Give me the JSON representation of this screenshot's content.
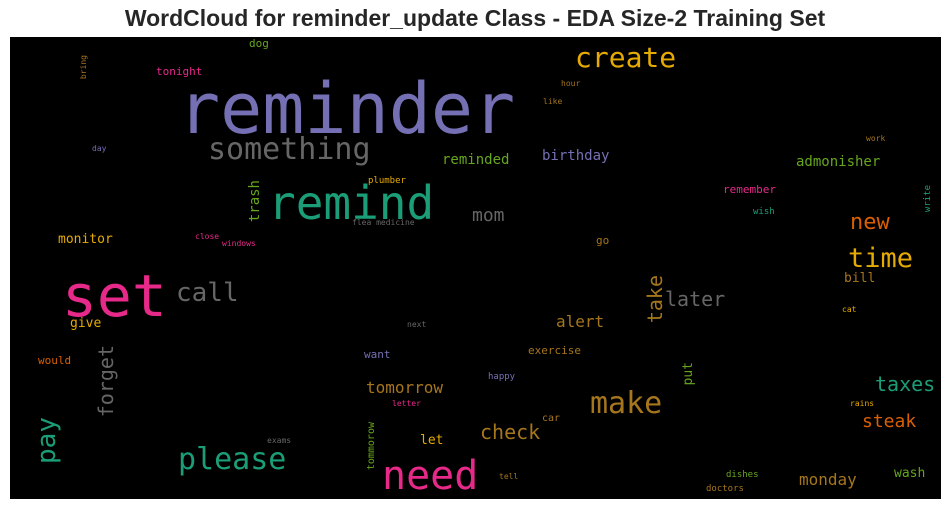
{
  "chart_data": {
    "type": "wordcloud",
    "title": "WordCloud for reminder_update Class - EDA Size-2 Training Set",
    "background": "#000000",
    "palette": [
      "#7570b3",
      "#1b9e77",
      "#e7298a",
      "#e6ab02",
      "#d95f02",
      "#66a61e",
      "#a6761d",
      "#666666"
    ],
    "words": [
      {
        "text": "reminder",
        "weight": 100,
        "color": "#7570b3"
      },
      {
        "text": "set",
        "weight": 88,
        "color": "#e7298a"
      },
      {
        "text": "remind",
        "weight": 70,
        "color": "#1b9e77"
      },
      {
        "text": "need",
        "weight": 62,
        "color": "#e7298a"
      },
      {
        "text": "something",
        "weight": 52,
        "color": "#666666"
      },
      {
        "text": "please",
        "weight": 52,
        "color": "#1b9e77"
      },
      {
        "text": "make",
        "weight": 50,
        "color": "#a6761d"
      },
      {
        "text": "create",
        "weight": 47,
        "color": "#e6ab02"
      },
      {
        "text": "time",
        "weight": 45,
        "color": "#e6ab02"
      },
      {
        "text": "call",
        "weight": 42,
        "color": "#666666"
      },
      {
        "text": "pay",
        "weight": 42,
        "color": "#1b9e77"
      },
      {
        "text": "new",
        "weight": 36,
        "color": "#d95f02"
      },
      {
        "text": "later",
        "weight": 32,
        "color": "#666666"
      },
      {
        "text": "take",
        "weight": 32,
        "color": "#a6761d"
      },
      {
        "text": "forget",
        "weight": 32,
        "color": "#666666"
      },
      {
        "text": "taxes",
        "weight": 32,
        "color": "#1b9e77"
      },
      {
        "text": "check",
        "weight": 32,
        "color": "#a6761d"
      },
      {
        "text": "mom",
        "weight": 30,
        "color": "#666666"
      },
      {
        "text": "steak",
        "weight": 30,
        "color": "#d95f02"
      },
      {
        "text": "alert",
        "weight": 26,
        "color": "#a6761d"
      },
      {
        "text": "tomorrow",
        "weight": 26,
        "color": "#a6761d"
      },
      {
        "text": "monday",
        "weight": 26,
        "color": "#a6761d"
      },
      {
        "text": "reminded",
        "weight": 23,
        "color": "#66a61e"
      },
      {
        "text": "birthday",
        "weight": 23,
        "color": "#7570b3"
      },
      {
        "text": "admonisher",
        "weight": 23,
        "color": "#66a61e"
      },
      {
        "text": "trash",
        "weight": 23,
        "color": "#66a61e"
      },
      {
        "text": "monitor",
        "weight": 22,
        "color": "#e6ab02"
      },
      {
        "text": "let",
        "weight": 22,
        "color": "#e6ab02"
      },
      {
        "text": "give",
        "weight": 21,
        "color": "#e6ab02"
      },
      {
        "text": "put",
        "weight": 21,
        "color": "#66a61e"
      },
      {
        "text": "wash",
        "weight": 20,
        "color": "#66a61e"
      },
      {
        "text": "bill",
        "weight": 20,
        "color": "#a6761d"
      },
      {
        "text": "tonight",
        "weight": 18,
        "color": "#e7298a"
      },
      {
        "text": "would",
        "weight": 18,
        "color": "#d95f02"
      },
      {
        "text": "exercise",
        "weight": 17,
        "color": "#a6761d"
      },
      {
        "text": "want",
        "weight": 17,
        "color": "#7570b3"
      },
      {
        "text": "remember",
        "weight": 17,
        "color": "#e7298a"
      },
      {
        "text": "go",
        "weight": 17,
        "color": "#a6761d"
      },
      {
        "text": "dog",
        "weight": 17,
        "color": "#66a61e"
      },
      {
        "text": "tommorow",
        "weight": 15,
        "color": "#66a61e"
      },
      {
        "text": "car",
        "weight": 15,
        "color": "#a6761d"
      },
      {
        "text": "plumber",
        "weight": 14,
        "color": "#e6ab02"
      },
      {
        "text": "wish",
        "weight": 14,
        "color": "#1b9e77"
      },
      {
        "text": "write",
        "weight": 14,
        "color": "#1b9e77"
      },
      {
        "text": "happy",
        "weight": 14,
        "color": "#7570b3"
      },
      {
        "text": "dishes",
        "weight": 14,
        "color": "#66a61e"
      },
      {
        "text": "doctors",
        "weight": 14,
        "color": "#a6761d"
      },
      {
        "text": "tell",
        "weight": 13,
        "color": "#a6761d"
      },
      {
        "text": "hour",
        "weight": 13,
        "color": "#a6761d"
      },
      {
        "text": "like",
        "weight": 13,
        "color": "#a6761d"
      },
      {
        "text": "work",
        "weight": 13,
        "color": "#a6761d"
      },
      {
        "text": "cat",
        "weight": 13,
        "color": "#e6ab02"
      },
      {
        "text": "rains",
        "weight": 13,
        "color": "#e6ab02"
      },
      {
        "text": "close",
        "weight": 13,
        "color": "#e7298a"
      },
      {
        "text": "windows",
        "weight": 13,
        "color": "#e7298a"
      },
      {
        "text": "letter",
        "weight": 13,
        "color": "#e7298a"
      },
      {
        "text": "next",
        "weight": 12,
        "color": "#666666"
      },
      {
        "text": "exams",
        "weight": 12,
        "color": "#666666"
      },
      {
        "text": "flea medicine",
        "weight": 12,
        "color": "#666666"
      },
      {
        "text": "day",
        "weight": 12,
        "color": "#7570b3"
      },
      {
        "text": "bring",
        "weight": 12,
        "color": "#a6761d"
      }
    ]
  }
}
